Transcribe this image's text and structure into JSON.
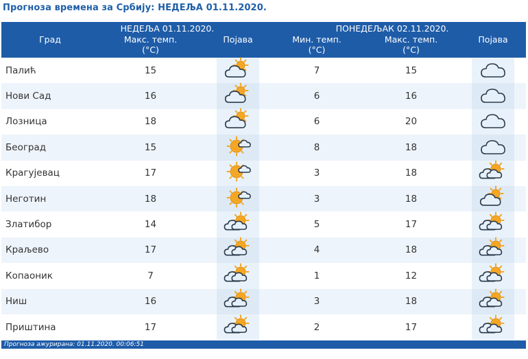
{
  "title": "Прогноза времена за Србију: НЕДЕЉА  01.11.2020.",
  "header": {
    "city": "Град",
    "day1": "НЕДЕЉА  01.11.2020.",
    "day1_max": "Макс. темп.",
    "day1_max_unit": "(°C)",
    "day1_phen": "Појава",
    "day2": "ПОНЕДЕЉАК  02.11.2020.",
    "day2_min": "Мин. темп.",
    "day2_min_unit": "(°C)",
    "day2_max": "Макс. темп.",
    "day2_max_unit": "(°C)",
    "day2_phen": "Појава"
  },
  "rows": [
    {
      "city": "Палић",
      "max1": "15",
      "icon1": "partly-cloudy-icon",
      "min2": "7",
      "max2": "15",
      "icon2": "cloud-icon"
    },
    {
      "city": "Нови Сад",
      "max1": "16",
      "icon1": "partly-cloudy-icon",
      "min2": "6",
      "max2": "16",
      "icon2": "cloud-icon"
    },
    {
      "city": "Лозница",
      "max1": "18",
      "icon1": "partly-cloudy-icon",
      "min2": "6",
      "max2": "20",
      "icon2": "cloud-icon"
    },
    {
      "city": "Београд",
      "max1": "15",
      "icon1": "mostly-sunny-icon",
      "min2": "8",
      "max2": "18",
      "icon2": "cloud-icon"
    },
    {
      "city": "Крагујевац",
      "max1": "17",
      "icon1": "mostly-sunny-icon",
      "min2": "3",
      "max2": "18",
      "icon2": "sun-behind-clouds-icon"
    },
    {
      "city": "Неготин",
      "max1": "18",
      "icon1": "mostly-sunny-icon",
      "min2": "3",
      "max2": "18",
      "icon2": "partly-cloudy-icon"
    },
    {
      "city": "Златибор",
      "max1": "14",
      "icon1": "sun-behind-clouds-icon",
      "min2": "5",
      "max2": "17",
      "icon2": "sun-behind-clouds-icon"
    },
    {
      "city": "Краљево",
      "max1": "17",
      "icon1": "sun-behind-clouds-icon",
      "min2": "4",
      "max2": "18",
      "icon2": "sun-behind-clouds-icon"
    },
    {
      "city": "Копаоник",
      "max1": "7",
      "icon1": "sun-behind-clouds-icon",
      "min2": "1",
      "max2": "12",
      "icon2": "sun-behind-clouds-icon"
    },
    {
      "city": "Ниш",
      "max1": "16",
      "icon1": "sun-behind-clouds-icon",
      "min2": "3",
      "max2": "18",
      "icon2": "sun-behind-clouds-icon"
    },
    {
      "city": "Приштина",
      "max1": "17",
      "icon1": "sun-behind-clouds-icon",
      "min2": "2",
      "max2": "17",
      "icon2": "sun-behind-clouds-icon"
    }
  ],
  "footer": "Прогноза ажурирана:  01.11.2020.  00:06:51",
  "colors": {
    "header_bg": "#1e5ca8",
    "title": "#1f5fa8",
    "row_alt": "#eef4fb",
    "sun": "#f5a623",
    "cloud_fill": "#e6f0fa",
    "cloud_stroke": "#2a3a4a"
  }
}
